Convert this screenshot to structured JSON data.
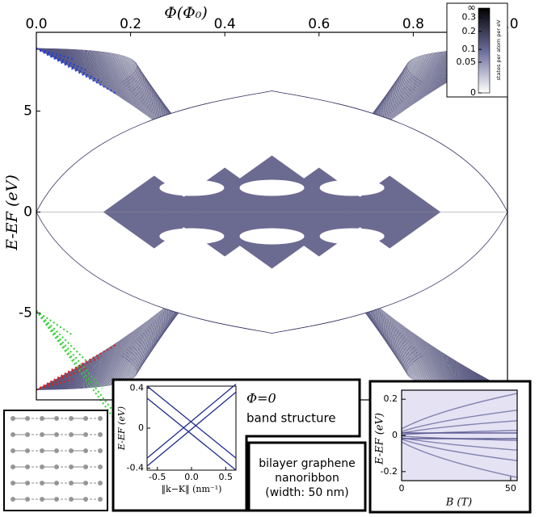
{
  "chart_data": [
    {
      "type": "heatmap",
      "x_label": "Φ(Φ₀)",
      "y_label": "E-EF (eV)",
      "xlim": [
        0,
        1
      ],
      "ylim": [
        -9.3,
        8.9
      ],
      "xticks": [
        {
          "value": 0,
          "label": "0.0"
        },
        0.2,
        0.4,
        0.6,
        0.8,
        {
          "value": 1,
          "label": "1.0"
        }
      ],
      "yticks": [
        5,
        0,
        -5
      ],
      "colorbar": {
        "label": "states per atom per eV",
        "top_label": "∞",
        "scale": "sqrt",
        "clim": [
          0,
          0.38
        ],
        "ticks": [
          0.3,
          0.2,
          0.1,
          0.05,
          0
        ],
        "colors": [
          "#ffffff",
          "#000000"
        ]
      }
    },
    {
      "type": "line",
      "title": "Φ=0",
      "subtitle": "band structure",
      "x_label": "‖k−K‖ (nm⁻¹)",
      "y_label": "E-EF (eV)",
      "xlim": [
        -0.65,
        0.65
      ],
      "ylim": [
        -0.42,
        0.42
      ],
      "xticks": [
        -0.5,
        {
          "value": 0,
          "label": "0.0"
        },
        0.5
      ],
      "yticks": [
        0.4,
        0,
        -0.4
      ],
      "series": [
        {
          "color": "#1f2a8c",
          "x": [
            -0.65,
            0.65
          ],
          "values": [
            0.42,
            -0.3
          ]
        },
        {
          "color": "#1f2a8c",
          "x": [
            -0.65,
            0.65
          ],
          "values": [
            0.3,
            -0.42
          ]
        },
        {
          "color": "#1f2a8c",
          "x": [
            -0.65,
            0.65
          ],
          "values": [
            -0.38,
            0.36
          ]
        },
        {
          "color": "#1f2a8c",
          "x": [
            -0.65,
            0.65
          ],
          "values": [
            -0.3,
            0.44
          ]
        }
      ]
    },
    {
      "type": "heatmap",
      "title": [
        "bilayer graphene",
        "nanoribbon",
        "(width: 50 nm)"
      ],
      "x_label": "B (T)",
      "y_label": "E-EF (eV)",
      "xlim": [
        0,
        53
      ],
      "ylim": [
        -0.25,
        0.25
      ],
      "xticks": [
        0,
        50
      ],
      "yticks": [
        0.2,
        0,
        -0.2
      ]
    }
  ]
}
